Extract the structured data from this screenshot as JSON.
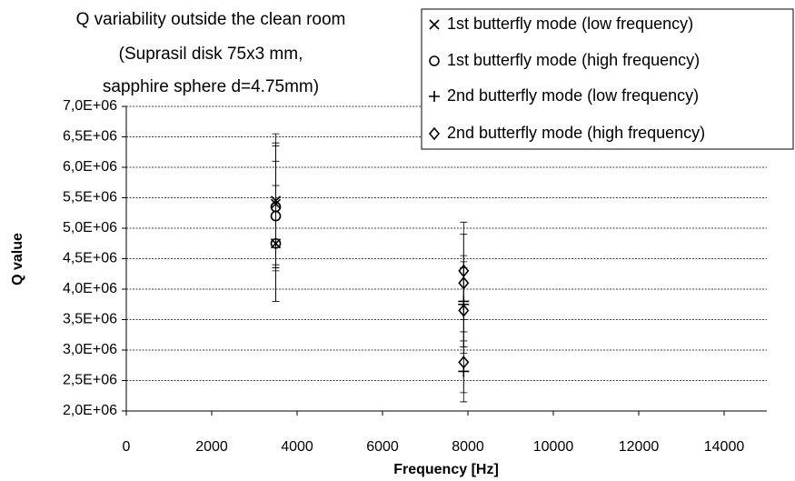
{
  "chart_data": {
    "type": "scatter",
    "title_lines": [
      "Q variability outside the clean room",
      "(Suprasil disk 75x3 mm,",
      "sapphire sphere d=4.75mm)"
    ],
    "x_label": "Frequency [Hz]",
    "y_label": "Q value",
    "xlim": [
      0,
      15000
    ],
    "xticks": [
      0,
      2000,
      4000,
      6000,
      8000,
      10000,
      12000,
      14000
    ],
    "ylim": [
      2000000,
      7000000
    ],
    "yticks": [
      {
        "value": 2000000,
        "label": "2,0E+06"
      },
      {
        "value": 2500000,
        "label": "2,5E+06"
      },
      {
        "value": 3000000,
        "label": "3,0E+06"
      },
      {
        "value": 3500000,
        "label": "3,5E+06"
      },
      {
        "value": 4000000,
        "label": "4,0E+06"
      },
      {
        "value": 4500000,
        "label": "4,5E+06"
      },
      {
        "value": 5000000,
        "label": "5,0E+06"
      },
      {
        "value": 5500000,
        "label": "5,5E+06"
      },
      {
        "value": 6000000,
        "label": "6,0E+06"
      },
      {
        "value": 6500000,
        "label": "6,5E+06"
      },
      {
        "value": 7000000,
        "label": "7,0E+06"
      }
    ],
    "grid": true,
    "legend": "top-right",
    "series": [
      {
        "name": "1st butterfly mode (low frequency)",
        "marker": "x",
        "color": "#000000",
        "x": [
          3500,
          3500,
          3500
        ],
        "values": [
          5450000,
          5400000,
          4750000
        ],
        "errors": [
          1100000,
          1000000,
          950000
        ]
      },
      {
        "name": "1st butterfly mode (high frequency)",
        "marker": "o",
        "color": "#000000",
        "x": [
          3500,
          3500,
          3500
        ],
        "values": [
          5350000,
          5200000,
          4750000
        ],
        "errors": [
          1000000,
          900000,
          950000
        ]
      },
      {
        "name": "2nd butterfly mode (low frequency)",
        "marker": "+",
        "color": "#000000",
        "x": [
          7900,
          7900,
          7900
        ],
        "values": [
          3800000,
          3750000,
          2650000
        ],
        "errors": [
          750000,
          700000,
          500000
        ]
      },
      {
        "name": "2nd butterfly mode (high frequency)",
        "marker": "d",
        "color": "#000000",
        "x": [
          7900,
          7900,
          7900,
          7900
        ],
        "values": [
          4300000,
          4100000,
          3650000,
          2800000
        ],
        "errors": [
          800000,
          800000,
          700000,
          500000
        ]
      }
    ]
  }
}
